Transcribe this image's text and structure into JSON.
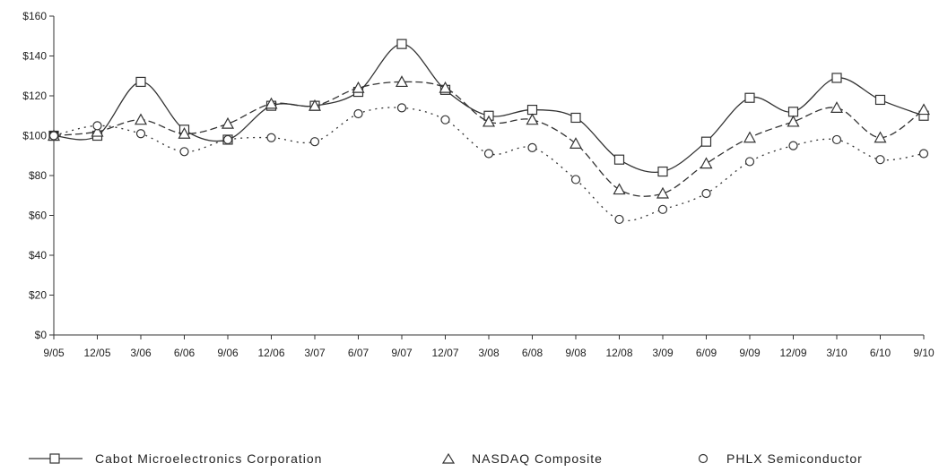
{
  "chart_data": {
    "type": "line",
    "categories": [
      "9/05",
      "12/05",
      "3/06",
      "6/06",
      "9/06",
      "12/06",
      "3/07",
      "6/07",
      "9/07",
      "12/07",
      "3/08",
      "6/08",
      "9/08",
      "12/08",
      "3/09",
      "6/09",
      "9/09",
      "12/09",
      "3/10",
      "6/10",
      "9/10"
    ],
    "ylim": [
      0,
      160
    ],
    "yticks": [
      0,
      20,
      40,
      60,
      80,
      100,
      120,
      140,
      160
    ],
    "ytick_labels": [
      "$0",
      "$20",
      "$40",
      "$60",
      "$80",
      "$100",
      "$120",
      "$140",
      "$160"
    ],
    "grid": false,
    "legend_position": "bottom",
    "series": [
      {
        "name": "Cabot Microelectronics Corporation",
        "marker": "square",
        "line": "solid",
        "values": [
          100,
          100,
          127,
          103,
          98,
          115,
          115,
          122,
          146,
          123,
          110,
          113,
          109,
          88,
          82,
          97,
          119,
          112,
          129,
          118,
          110
        ]
      },
      {
        "name": "NASDAQ Composite",
        "marker": "triangle",
        "line": "dashed",
        "values": [
          100,
          102,
          108,
          101,
          106,
          116,
          115,
          124,
          127,
          124,
          107,
          108,
          96,
          73,
          71,
          86,
          99,
          107,
          114,
          99,
          113
        ]
      },
      {
        "name": "PHLX Semiconductor",
        "marker": "circle",
        "line": "dotted",
        "values": [
          100,
          105,
          101,
          92,
          98,
          99,
          97,
          111,
          114,
          108,
          91,
          94,
          78,
          58,
          63,
          71,
          87,
          95,
          98,
          88,
          91
        ]
      }
    ]
  }
}
